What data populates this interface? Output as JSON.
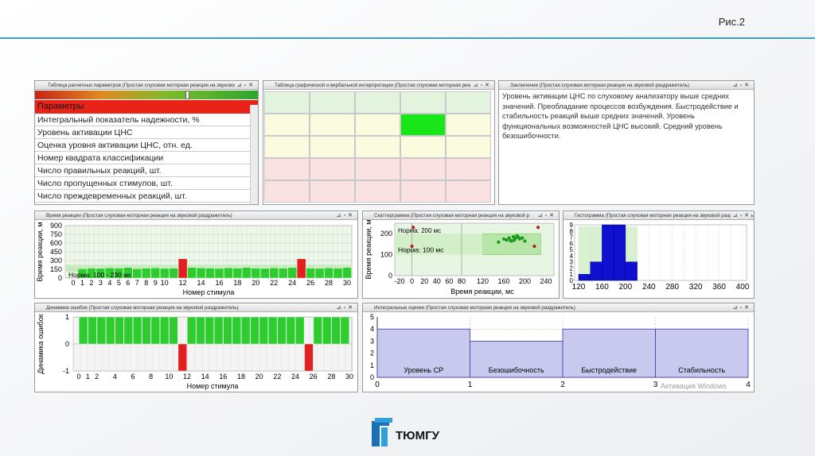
{
  "slide": {
    "number": "Рис.2"
  },
  "panels": {
    "params": {
      "title": "Таблица расчетных параметров (Простая слуховая моторная реакция на звуковой р",
      "header": "Параметры",
      "rows": [
        "Интегральный показатель надежности, %",
        "Уровень активации ЦНС",
        "Оценка уровня активации ЦНС, отн. ед.",
        "Номер квадрата классификации",
        "Число правильных реакций, шт.",
        "Число пропущенных стимулов, шт.",
        "Число преждевременных реакций, шт."
      ]
    },
    "interp": {
      "title": "Таблица графической и вербальной интерпретации (Простая слуховая моторная реа"
    },
    "conclusion": {
      "title": "Заключение (Простая слуховая моторная реакция на звуковой раздражитель)",
      "text": "Уровень активации ЦНС по слуховому анализатору выше средних значений. Преобладание процессов возбуждения. Быстродействие и стабильность реакций выше средних значений. Уровень функциональных возможностей ЦНС высокий. Средний уровень безошибочности."
    },
    "reaction_time": {
      "title": "Время реакции (Простая слуховая моторная реакция на звуковой раздражитель)"
    },
    "scatter": {
      "title": "Скаттерграмма (Простая слуховая моторная реакция на звуковой р"
    },
    "histogram": {
      "title": "Гистограмма (Простая слуховая моторная реакция на звуковой раздражитель)"
    },
    "errors": {
      "title": "Динамика ошибок (Простая слуховая моторная реакция на звуковой раздражитель)"
    },
    "integral": {
      "title": "Интегральные оценки (Простая слуховая моторная реакция на звуковой раздражитель)"
    }
  },
  "buttons": {
    "pin": "⊿",
    "restore": "▫",
    "close": "✕"
  },
  "colors": {
    "accent": "#3aa0d6",
    "green": "#22c322",
    "red": "#e22020",
    "blue": "#1010d0"
  },
  "chart_data": [
    {
      "type": "bar",
      "name": "reaction_time",
      "ylabel": "Время реакции, м",
      "xlabel": "Номер стимула",
      "norm_label": "Норма: 100 - 230 мс",
      "yticks": [
        0,
        150,
        300,
        450,
        600,
        750,
        900
      ],
      "xticks": [
        0,
        1,
        2,
        3,
        4,
        5,
        6,
        7,
        8,
        9,
        10,
        12,
        14,
        16,
        18,
        20,
        22,
        24,
        26,
        28,
        30
      ],
      "ylim": [
        0,
        900
      ],
      "x": [
        1,
        2,
        3,
        4,
        5,
        6,
        7,
        8,
        9,
        10,
        11,
        12,
        13,
        14,
        15,
        16,
        17,
        18,
        19,
        20,
        21,
        22,
        23,
        24,
        25,
        26,
        27,
        28,
        29,
        30
      ],
      "values": [
        160,
        170,
        165,
        175,
        170,
        180,
        160,
        170,
        175,
        165,
        170,
        330,
        180,
        175,
        170,
        165,
        175,
        170,
        180,
        170,
        165,
        175,
        170,
        180,
        330,
        170,
        165,
        175,
        170,
        180
      ],
      "error_marks": [
        12,
        25
      ]
    },
    {
      "type": "scatter",
      "name": "scatter",
      "xlabel": "Время реакции, мс",
      "ylabel": "Время реакции, м",
      "norm_top": "Норма: 200 мс",
      "norm_bottom": "Норма: 100 мс",
      "xticks": [
        -20,
        0,
        20,
        40,
        60,
        80,
        120,
        160,
        200,
        240
      ],
      "yticks": [
        0,
        100,
        200
      ],
      "points": [
        [
          150,
          160
        ],
        [
          160,
          175
        ],
        [
          165,
          170
        ],
        [
          170,
          180
        ],
        [
          175,
          165
        ],
        [
          178,
          185
        ],
        [
          180,
          170
        ],
        [
          185,
          190
        ],
        [
          190,
          175
        ],
        [
          195,
          180
        ],
        [
          200,
          165
        ],
        [
          182,
          178
        ],
        [
          172,
          168
        ],
        [
          188,
          183
        ],
        [
          0,
          140
        ],
        [
          2,
          230
        ],
        [
          218,
          140
        ],
        [
          225,
          230
        ]
      ]
    },
    {
      "type": "bar",
      "name": "histogram",
      "xlabel": "",
      "ylabel": "",
      "yticks": [
        0,
        1,
        2,
        3,
        4,
        5,
        6,
        7,
        8,
        9
      ],
      "xticks": [
        120,
        160,
        200,
        240,
        280,
        320,
        360,
        400
      ],
      "bins": [
        [
          120,
          140,
          1
        ],
        [
          140,
          160,
          3
        ],
        [
          160,
          180,
          9
        ],
        [
          180,
          200,
          9
        ],
        [
          200,
          220,
          3
        ]
      ]
    },
    {
      "type": "bar",
      "name": "errors",
      "ylabel": "Динамика ошибок",
      "xlabel": "Номер стимула",
      "yticks": [
        -1,
        0,
        1
      ],
      "xticks": [
        0,
        1,
        2,
        4,
        6,
        8,
        10,
        12,
        14,
        16,
        18,
        20,
        22,
        24,
        26,
        28,
        30
      ],
      "values": [
        1,
        1,
        1,
        1,
        1,
        1,
        1,
        1,
        1,
        1,
        1,
        -1,
        1,
        1,
        1,
        1,
        1,
        1,
        1,
        1,
        1,
        1,
        1,
        1,
        1,
        -1,
        1,
        1,
        1,
        1
      ]
    },
    {
      "type": "bar",
      "name": "integral",
      "categories": [
        "Уровень СР",
        "Безошибочность",
        "Быстродействие",
        "Стабильность"
      ],
      "values": [
        4,
        3,
        4,
        4
      ],
      "yticks": [
        0,
        1,
        2,
        3,
        4,
        5
      ],
      "xticks": [
        0,
        1,
        2,
        3,
        4
      ]
    }
  ],
  "watermark": "Активация Windows",
  "logo": {
    "text": "ТЮМГУ"
  }
}
